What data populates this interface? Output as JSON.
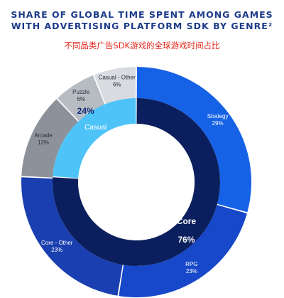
{
  "header": {
    "title_line1": "SHARE OF GLOBAL TIME SPENT AMONG GAMES",
    "title_line2": "WITH ADVERTISING PLATFORM SDK BY GENRE²",
    "subtitle": "不同品类广告SDK游戏的全球游戏时间占比"
  },
  "chart_data": {
    "type": "pie",
    "variant": "nested-donut",
    "inner_ring": [
      {
        "name": "Core",
        "value": 76,
        "label": "76%",
        "color": "#0b1f5e"
      },
      {
        "name": "Casual",
        "value": 24,
        "label": "24%",
        "color": "#4ec3f7"
      }
    ],
    "outer_ring": [
      {
        "name": "Strategy",
        "value": 29,
        "label": "29%",
        "color": "#1662e6",
        "group": "Core"
      },
      {
        "name": "RPG",
        "value": 23,
        "label": "23%",
        "color": "#1748c9",
        "group": "Core"
      },
      {
        "name": "Core - Other",
        "value": 23,
        "label": "23%",
        "color": "#1a3fb0",
        "group": "Core"
      },
      {
        "name": "Arcade",
        "value": 12,
        "label": "12%",
        "color": "#8d929a",
        "group": "Casual"
      },
      {
        "name": "Puzzle",
        "value": 6,
        "label": "6%",
        "color": "#b7bbc2",
        "group": "Casual"
      },
      {
        "name": "Casual - Other",
        "value": 6,
        "label": "6%",
        "color": "#d8dbe0",
        "group": "Casual"
      }
    ]
  }
}
